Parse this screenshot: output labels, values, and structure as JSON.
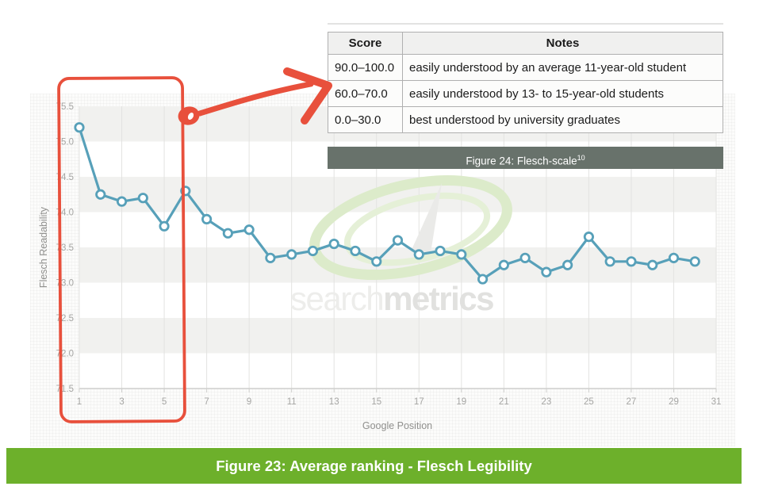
{
  "figure23_caption": {
    "text": "Figure 23: Average ranking - Flesch Legibility"
  },
  "figure24": {
    "caption": "Figure 24: Flesch-scale",
    "caption_superscript": "10"
  },
  "flesch_table": {
    "headers": [
      "Score",
      "Notes"
    ],
    "rows": [
      {
        "score": "90.0–100.0",
        "note": "easily understood by an average 11-year-old student"
      },
      {
        "score": "60.0–70.0",
        "note": "easily understood by 13- to 15-year-old students"
      },
      {
        "score": "0.0–30.0",
        "note": "best understood by university graduates"
      }
    ]
  },
  "watermark": {
    "word_light": "search",
    "word_bold": "metrics"
  },
  "annotation": {
    "description": "hand-drawn red box highlighting Google positions 1–5, with pen dot and arrow pointing to the 60.0–70.0 row of the Flesch scale table",
    "color": "#e8503c"
  },
  "colors": {
    "line": "#57a0b9",
    "band": "#f1f1ef",
    "caption_green": "#6db02b",
    "caption_gray": "#68726b",
    "annotation_red": "#e8503c"
  },
  "chart_data": {
    "type": "line",
    "title": "",
    "xlabel": "Google Position",
    "ylabel": "Flesch Readability",
    "x": [
      1,
      2,
      3,
      4,
      5,
      6,
      7,
      8,
      9,
      10,
      11,
      12,
      13,
      14,
      15,
      16,
      17,
      18,
      19,
      20,
      21,
      22,
      23,
      24,
      25,
      26,
      27,
      28,
      29,
      30
    ],
    "values": [
      75.2,
      74.25,
      74.15,
      74.2,
      73.8,
      74.3,
      73.9,
      73.7,
      73.75,
      73.35,
      73.4,
      73.45,
      73.55,
      73.45,
      73.3,
      73.6,
      73.4,
      73.45,
      73.4,
      73.05,
      73.25,
      73.35,
      73.15,
      73.25,
      73.65,
      73.3,
      73.3,
      73.25,
      73.35,
      73.3
    ],
    "xticks": [
      "1",
      "3",
      "5",
      "7",
      "9",
      "11",
      "13",
      "15",
      "17",
      "19",
      "21",
      "23",
      "25",
      "27",
      "29",
      "31"
    ],
    "yticks": [
      "75.5",
      "75.0",
      "74.5",
      "74.0",
      "73.5",
      "73.0",
      "72.5",
      "72.0",
      "71.5"
    ],
    "xlim": [
      0,
      31
    ],
    "ylim": [
      71.5,
      75.5
    ],
    "grid": "vertical gridlines at odd positions; gray horizontal bands on alternating 0.5 intervals",
    "legend": "none",
    "marker": "open circle"
  }
}
